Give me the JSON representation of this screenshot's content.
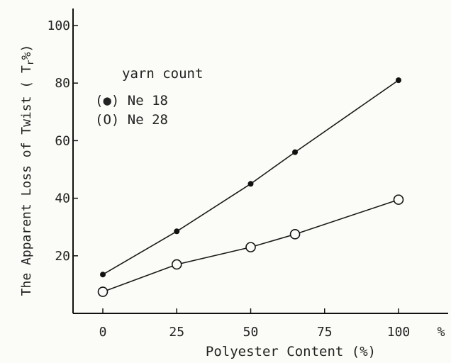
{
  "chart_data": {
    "type": "scatter",
    "title": "",
    "xlabel": "Polyester Content (%)",
    "ylabel": "The Apparent Loss of Twist  ( T",
    "ylabel_sub": "r",
    "ylabel_end": "%)",
    "xlim": [
      -10,
      110
    ],
    "ylim": [
      0,
      105
    ],
    "x_ticks": [
      0,
      25,
      50,
      75,
      100
    ],
    "x_tick_labels": [
      "0",
      "25",
      "50",
      "75",
      "100"
    ],
    "x_unit": "%",
    "y_ticks": [
      20,
      40,
      60,
      80,
      100
    ],
    "y_tick_labels": [
      "20",
      "40",
      "60",
      "80",
      "100"
    ],
    "grid": false,
    "legend": {
      "title": "yarn count",
      "placement": "top-left"
    },
    "series": [
      {
        "name": "Ne 18",
        "legend_label": "(●) Ne 18",
        "marker": "filled-circle",
        "x": [
          0,
          25,
          50,
          65,
          100
        ],
        "y": [
          13.5,
          28.5,
          45,
          56,
          81
        ]
      },
      {
        "name": "Ne 28",
        "legend_label": "(O) Ne 28",
        "marker": "open-circle",
        "x": [
          0,
          25,
          50,
          65,
          100
        ],
        "y": [
          7.5,
          17,
          23,
          27.5,
          39.5
        ]
      }
    ]
  }
}
